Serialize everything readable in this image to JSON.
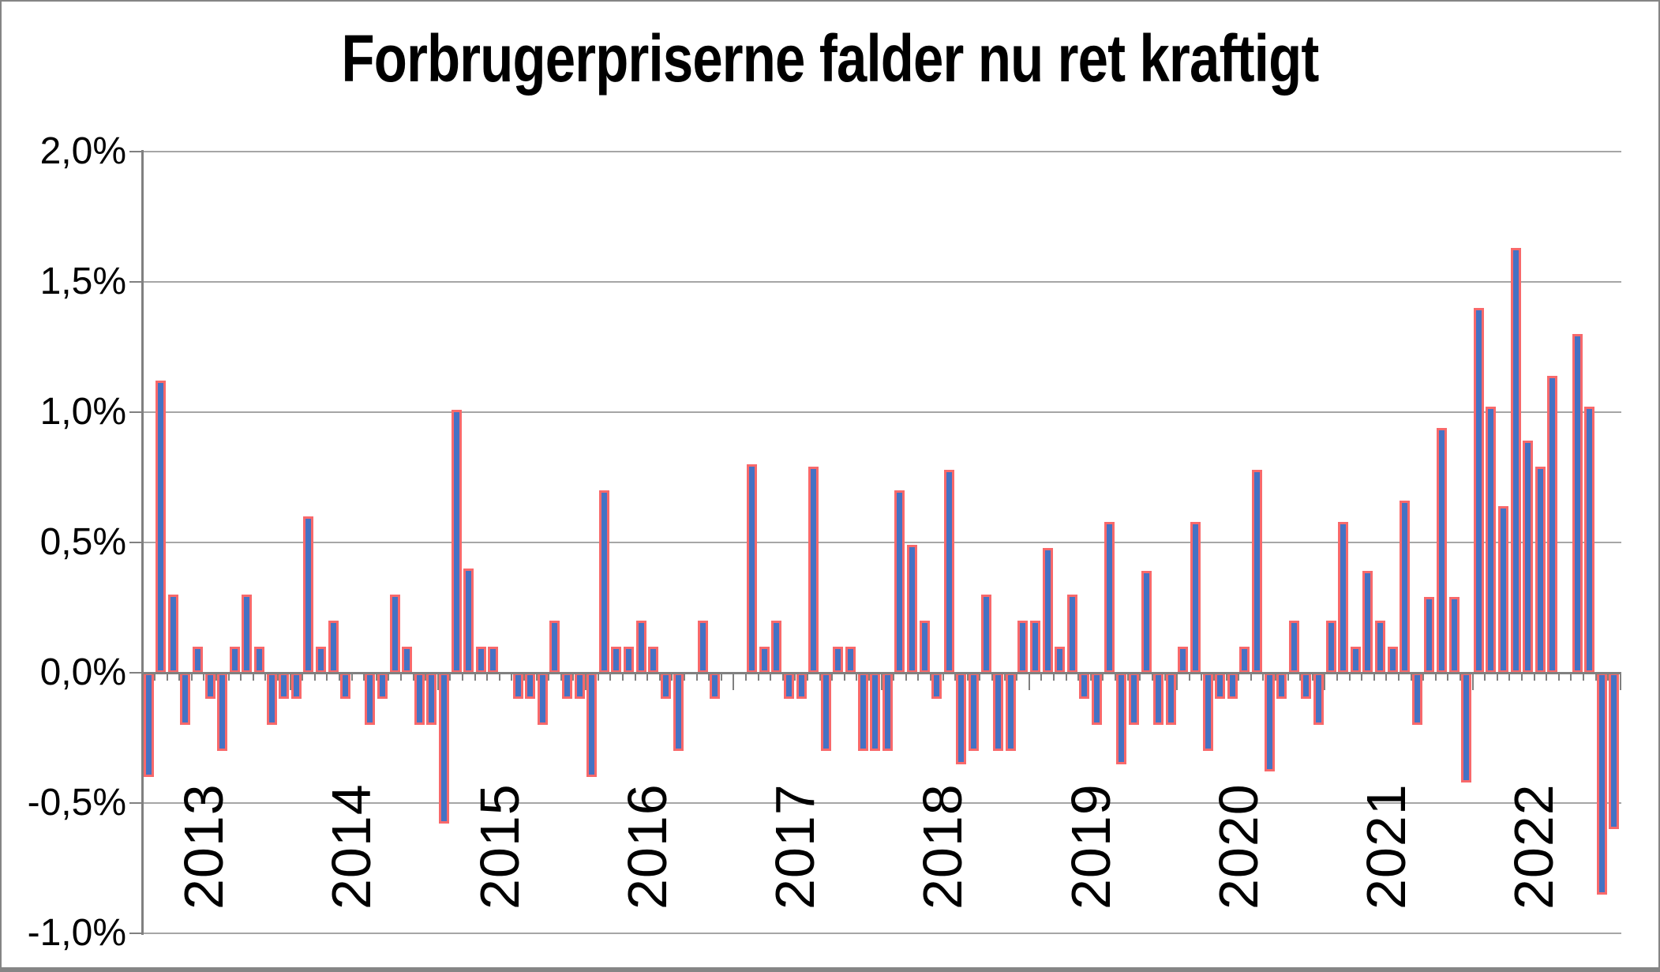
{
  "title": "Forbrugerpriserne falder nu ret kraftigt",
  "colors": {
    "bar_fill": "#4472C4",
    "bar_border": "#F8696B",
    "gridline": "#A6A6A6",
    "axis": "#808080",
    "text": "#000000"
  },
  "y_axis": {
    "tick_labels": [
      "2,0%",
      "1,5%",
      "1,0%",
      "0,5%",
      "0,0%",
      "-0,5%",
      "-1,0%"
    ],
    "tick_values": [
      2.0,
      1.5,
      1.0,
      0.5,
      0.0,
      -0.5,
      -1.0
    ]
  },
  "x_axis": {
    "year_labels": [
      "2013",
      "2014",
      "2015",
      "2016",
      "2017",
      "2018",
      "2019",
      "2020",
      "2021",
      "2022"
    ]
  },
  "chart_data": {
    "type": "bar",
    "title": "Forbrugerpriserne falder nu ret kraftigt",
    "ylabel": "",
    "xlabel": "",
    "unit": "%",
    "ylim": [
      -1.0,
      2.0
    ],
    "grid_step": 0.5,
    "grid": true,
    "legend": false,
    "categories_note": "monthly values Jan-Dec per year; 0 = no visible bar",
    "series": [
      {
        "year": "2013",
        "values": [
          -0.4,
          1.12,
          0.3,
          -0.2,
          0.1,
          -0.1,
          -0.3,
          0.1,
          0.3,
          0.1,
          -0.2,
          -0.1
        ]
      },
      {
        "year": "2014",
        "values": [
          -0.1,
          0.6,
          0.1,
          0.2,
          -0.1,
          0.0,
          -0.2,
          -0.1,
          0.3,
          0.1,
          -0.2,
          -0.2
        ]
      },
      {
        "year": "2015",
        "values": [
          -0.58,
          1.01,
          0.4,
          0.1,
          0.1,
          0.0,
          -0.1,
          -0.1,
          -0.2,
          0.2,
          -0.1,
          -0.1
        ]
      },
      {
        "year": "2016",
        "values": [
          -0.4,
          0.7,
          0.1,
          0.1,
          0.2,
          0.1,
          -0.1,
          -0.3,
          0.0,
          0.2,
          -0.1,
          0.0
        ]
      },
      {
        "year": "2017",
        "values": [
          0.0,
          0.8,
          0.1,
          0.2,
          -0.1,
          -0.1,
          0.79,
          -0.3,
          0.1,
          0.1,
          -0.3,
          -0.3
        ]
      },
      {
        "year": "2018",
        "values": [
          -0.3,
          0.7,
          0.49,
          0.2,
          -0.1,
          0.78,
          -0.35,
          -0.3,
          0.3,
          -0.3,
          -0.3,
          0.2
        ]
      },
      {
        "year": "2019",
        "values": [
          0.2,
          0.48,
          0.1,
          0.3,
          -0.1,
          -0.2,
          0.58,
          -0.35,
          -0.2,
          0.39,
          -0.2,
          -0.2
        ]
      },
      {
        "year": "2020",
        "values": [
          0.1,
          0.58,
          -0.3,
          -0.1,
          -0.1,
          0.1,
          0.78,
          -0.38,
          -0.1,
          0.2,
          -0.1,
          -0.2
        ]
      },
      {
        "year": "2021",
        "values": [
          0.2,
          0.58,
          0.1,
          0.39,
          0.2,
          0.1,
          0.66,
          -0.2,
          0.29,
          0.94,
          0.29,
          -0.42
        ]
      },
      {
        "year": "2022",
        "values": [
          1.4,
          1.02,
          0.64,
          1.63,
          0.89,
          0.79,
          1.14,
          0.0,
          1.3,
          1.02,
          -0.85,
          -0.6
        ]
      }
    ]
  }
}
